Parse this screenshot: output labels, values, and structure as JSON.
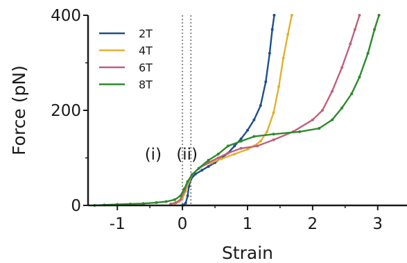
{
  "chart_data": {
    "type": "line",
    "title": "",
    "xlabel": "Strain",
    "ylabel": "Force (pN)",
    "xlim": [
      -1.45,
      3.45
    ],
    "ylim": [
      0,
      400
    ],
    "xticks": [
      -1,
      0,
      1,
      2,
      3
    ],
    "xtick_labels": [
      "-1",
      "0",
      "1",
      "2",
      "3"
    ],
    "yticks": [
      0,
      200,
      400
    ],
    "ytick_labels": [
      "0",
      "200",
      "400"
    ],
    "grid": false,
    "legend_position": "top-left",
    "reference_lines": [
      {
        "x": 0.0,
        "style": "dotted",
        "color": "#888888"
      },
      {
        "x": 0.13,
        "style": "dotted",
        "color": "#888888"
      }
    ],
    "annotations": [
      {
        "text": "(i)",
        "x": -0.45,
        "y": 155
      },
      {
        "text": "(ii)",
        "x": 0.07,
        "y": 155
      }
    ],
    "series": [
      {
        "name": "2T",
        "color": "#1f4e8c",
        "points": [
          [
            0.0,
            0
          ],
          [
            0.05,
            5
          ],
          [
            0.08,
            20
          ],
          [
            0.1,
            40
          ],
          [
            0.13,
            55
          ],
          [
            0.2,
            66
          ],
          [
            0.3,
            74
          ],
          [
            0.4,
            82
          ],
          [
            0.5,
            90
          ],
          [
            0.6,
            100
          ],
          [
            0.7,
            110
          ],
          [
            0.8,
            125
          ],
          [
            0.9,
            140
          ],
          [
            1.0,
            158
          ],
          [
            1.1,
            180
          ],
          [
            1.2,
            210
          ],
          [
            1.28,
            260
          ],
          [
            1.34,
            320
          ],
          [
            1.38,
            370
          ],
          [
            1.41,
            400
          ]
        ]
      },
      {
        "name": "4T",
        "color": "#e0b030",
        "points": [
          [
            -0.12,
            3
          ],
          [
            -0.05,
            8
          ],
          [
            0.0,
            15
          ],
          [
            0.05,
            30
          ],
          [
            0.1,
            50
          ],
          [
            0.15,
            65
          ],
          [
            0.25,
            78
          ],
          [
            0.35,
            86
          ],
          [
            0.45,
            90
          ],
          [
            0.6,
            98
          ],
          [
            0.8,
            108
          ],
          [
            1.0,
            118
          ],
          [
            1.1,
            125
          ],
          [
            1.2,
            135
          ],
          [
            1.3,
            155
          ],
          [
            1.4,
            195
          ],
          [
            1.48,
            250
          ],
          [
            1.55,
            310
          ],
          [
            1.62,
            360
          ],
          [
            1.68,
            400
          ]
        ]
      },
      {
        "name": "6T",
        "color": "#c0607a",
        "points": [
          [
            -0.18,
            3
          ],
          [
            -0.1,
            6
          ],
          [
            -0.03,
            12
          ],
          [
            0.03,
            30
          ],
          [
            0.08,
            50
          ],
          [
            0.15,
            65
          ],
          [
            0.25,
            78
          ],
          [
            0.4,
            90
          ],
          [
            0.55,
            100
          ],
          [
            0.7,
            110
          ],
          [
            0.9,
            120
          ],
          [
            1.15,
            125
          ],
          [
            1.4,
            138
          ],
          [
            1.7,
            155
          ],
          [
            2.0,
            180
          ],
          [
            2.15,
            200
          ],
          [
            2.3,
            240
          ],
          [
            2.45,
            290
          ],
          [
            2.58,
            340
          ],
          [
            2.65,
            370
          ],
          [
            2.72,
            400
          ]
        ]
      },
      {
        "name": "8T",
        "color": "#2a8a2a",
        "points": [
          [
            -1.35,
            0
          ],
          [
            -1.2,
            1
          ],
          [
            -1.0,
            2
          ],
          [
            -0.8,
            3
          ],
          [
            -0.6,
            4
          ],
          [
            -0.4,
            6
          ],
          [
            -0.25,
            8
          ],
          [
            -0.12,
            12
          ],
          [
            -0.03,
            20
          ],
          [
            0.03,
            35
          ],
          [
            0.08,
            50
          ],
          [
            0.15,
            65
          ],
          [
            0.25,
            78
          ],
          [
            0.4,
            95
          ],
          [
            0.55,
            108
          ],
          [
            0.7,
            125
          ],
          [
            0.9,
            135
          ],
          [
            1.1,
            145
          ],
          [
            1.4,
            150
          ],
          [
            1.8,
            155
          ],
          [
            2.1,
            162
          ],
          [
            2.3,
            180
          ],
          [
            2.45,
            205
          ],
          [
            2.6,
            235
          ],
          [
            2.72,
            270
          ],
          [
            2.85,
            320
          ],
          [
            2.95,
            370
          ],
          [
            3.02,
            400
          ]
        ]
      }
    ]
  }
}
